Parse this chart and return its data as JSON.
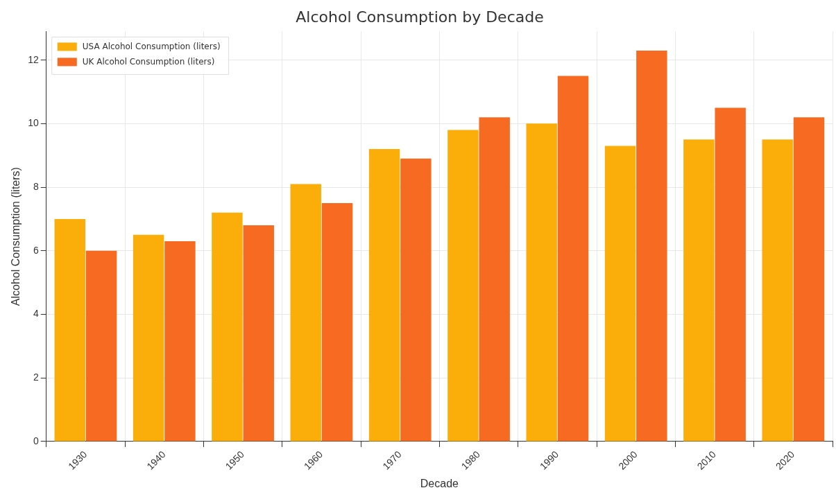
{
  "chart_data": {
    "type": "bar",
    "title": "Alcohol Consumption by Decade",
    "xlabel": "Decade",
    "ylabel": "Alcohol Consumption (liters)",
    "categories": [
      "1930",
      "1940",
      "1950",
      "1960",
      "1970",
      "1980",
      "1990",
      "2000",
      "2010",
      "2020"
    ],
    "series": [
      {
        "name": "USA Alcohol Consumption (liters)",
        "color": "#fbae09",
        "values": [
          7.0,
          6.5,
          7.2,
          8.1,
          9.2,
          9.8,
          10.0,
          9.3,
          9.5,
          9.5
        ]
      },
      {
        "name": "UK Alcohol Consumption (liters)",
        "color": "#f76a22",
        "values": [
          6.0,
          6.3,
          6.8,
          7.5,
          8.9,
          10.2,
          11.5,
          12.3,
          10.5,
          10.2
        ]
      }
    ],
    "ylim": [
      0,
      12.9
    ],
    "yticks": [
      0,
      2,
      4,
      6,
      8,
      10,
      12
    ],
    "grid": true,
    "legend": "top left"
  }
}
